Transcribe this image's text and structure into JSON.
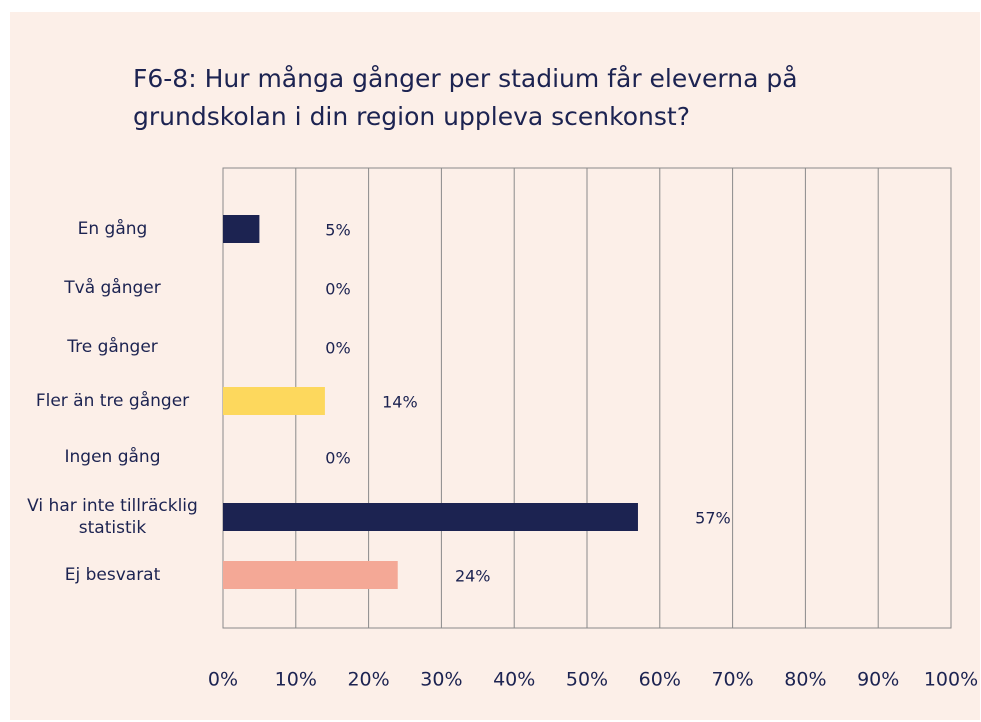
{
  "chart_data": {
    "type": "barh",
    "title": "F6-8: Hur många gånger per stadium får eleverna på grundskolan i din region uppleva scenkonst?",
    "categories": [
      "En gång",
      "Två gånger",
      "Tre gånger",
      "Fler än tre gånger",
      "Ingen gång",
      "Vi har inte tillräcklig statistik",
      "Ej besvarat"
    ],
    "values": [
      5,
      0,
      0,
      14,
      0,
      57,
      24
    ],
    "value_labels": [
      "5%",
      "0%",
      "0%",
      "14%",
      "0%",
      "57%",
      "24%"
    ],
    "colors": [
      "#1c2351",
      "#1c2351",
      "#1c2351",
      "#fdd85d",
      "#1c2351",
      "#1c2351",
      "#f4a896"
    ],
    "xlim": [
      0,
      100
    ],
    "xticks": [
      {
        "value": 0,
        "label": "0%"
      },
      {
        "value": 10,
        "label": "10%"
      },
      {
        "value": 20,
        "label": "20%"
      },
      {
        "value": 30,
        "label": "30%"
      },
      {
        "value": 40,
        "label": "40%"
      },
      {
        "value": 50,
        "label": "50%"
      },
      {
        "value": 60,
        "label": "60%"
      },
      {
        "value": 70,
        "label": "70%"
      },
      {
        "value": 80,
        "label": "80%"
      },
      {
        "value": 90,
        "label": "90%"
      },
      {
        "value": 100,
        "label": "100%"
      }
    ],
    "grid": true
  }
}
